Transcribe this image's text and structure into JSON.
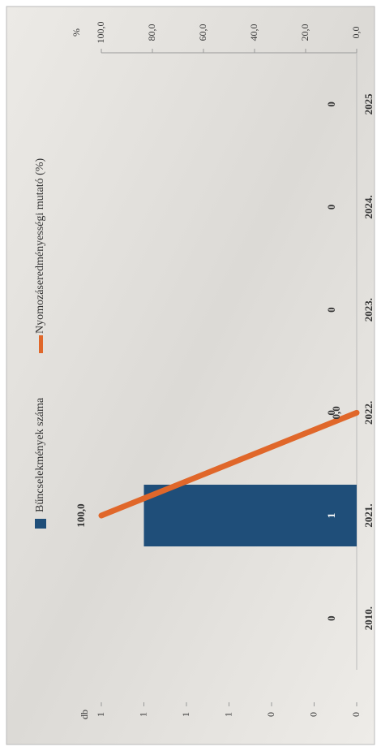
{
  "chart_data": {
    "type": "bar",
    "categories": [
      "2010.",
      "2021.",
      "2022.",
      "2023.",
      "2024.",
      "2025"
    ],
    "y_axis_label": "db",
    "y2_axis_label": "%",
    "series": [
      {
        "name": "Bűncselekmények száma",
        "type": "bar",
        "color": "#1f4e79",
        "values": [
          0,
          1,
          0,
          0,
          0,
          0
        ]
      },
      {
        "name": "Nyomozáseredményességi mutató (%)",
        "type": "line",
        "axis": "y2",
        "color": "#e0672a",
        "values": [
          null,
          100,
          0,
          null,
          null,
          null
        ],
        "value_labels": [
          null,
          "100,0",
          "0,0",
          null,
          null,
          null
        ]
      }
    ],
    "ylim": [
      0,
      1.2
    ],
    "yticks": [
      0,
      {
        "value": 0.2,
        "label": "0"
      },
      {
        "value": 0.4,
        "label": "0"
      },
      {
        "value": 0.6,
        "label": "1"
      },
      {
        "value": 0.8,
        "label": "1"
      },
      1,
      {
        "value": 1.2,
        "label": "1"
      }
    ],
    "y2lim": [
      0,
      100
    ],
    "y2ticks": [
      {
        "value": 0,
        "label": "0,0"
      },
      {
        "value": 20,
        "label": "20,0"
      },
      {
        "value": 40,
        "label": "40,0"
      },
      {
        "value": 60,
        "label": "60,0"
      },
      {
        "value": 80,
        "label": "80,0"
      },
      {
        "value": 100,
        "label": "100,0"
      }
    ]
  }
}
